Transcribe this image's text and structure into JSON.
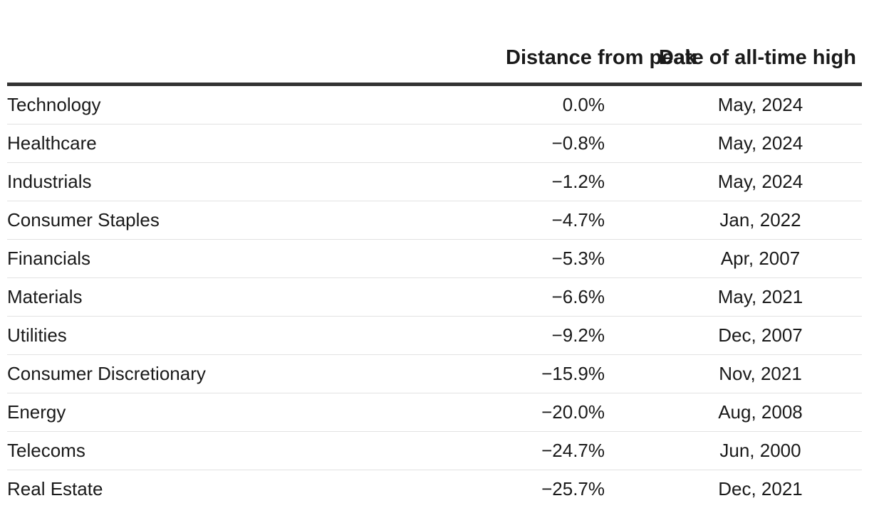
{
  "chart_data": {
    "type": "table",
    "columns": [
      "",
      "Distance from peak",
      "Date of all-time high"
    ],
    "rows": [
      {
        "sector": "Technology",
        "distance": "0.0%",
        "distance_value": 0.0,
        "date": "May, 2024"
      },
      {
        "sector": "Healthcare",
        "distance": "−0.8%",
        "distance_value": -0.8,
        "date": "May, 2024"
      },
      {
        "sector": "Industrials",
        "distance": "−1.2%",
        "distance_value": -1.2,
        "date": "May, 2024"
      },
      {
        "sector": "Consumer Staples",
        "distance": "−4.7%",
        "distance_value": -4.7,
        "date": "Jan, 2022"
      },
      {
        "sector": "Financials",
        "distance": "−5.3%",
        "distance_value": -5.3,
        "date": "Apr, 2007"
      },
      {
        "sector": "Materials",
        "distance": "−6.6%",
        "distance_value": -6.6,
        "date": "May, 2021"
      },
      {
        "sector": "Utilities",
        "distance": "−9.2%",
        "distance_value": -9.2,
        "date": "Dec, 2007"
      },
      {
        "sector": "Consumer Discretionary",
        "distance": "−15.9%",
        "distance_value": -15.9,
        "date": "Nov, 2021"
      },
      {
        "sector": "Energy",
        "distance": "−20.0%",
        "distance_value": -20.0,
        "date": "Aug, 2008"
      },
      {
        "sector": "Telecoms",
        "distance": "−24.7%",
        "distance_value": -24.7,
        "date": "Jun, 2000"
      },
      {
        "sector": "Real Estate",
        "distance": "−25.7%",
        "distance_value": -25.7,
        "date": "Dec, 2021"
      }
    ]
  },
  "colors": {
    "text": "#1a1a1a",
    "header_rule": "#333333",
    "row_rule": "#e2e2e2",
    "background": "#ffffff"
  }
}
